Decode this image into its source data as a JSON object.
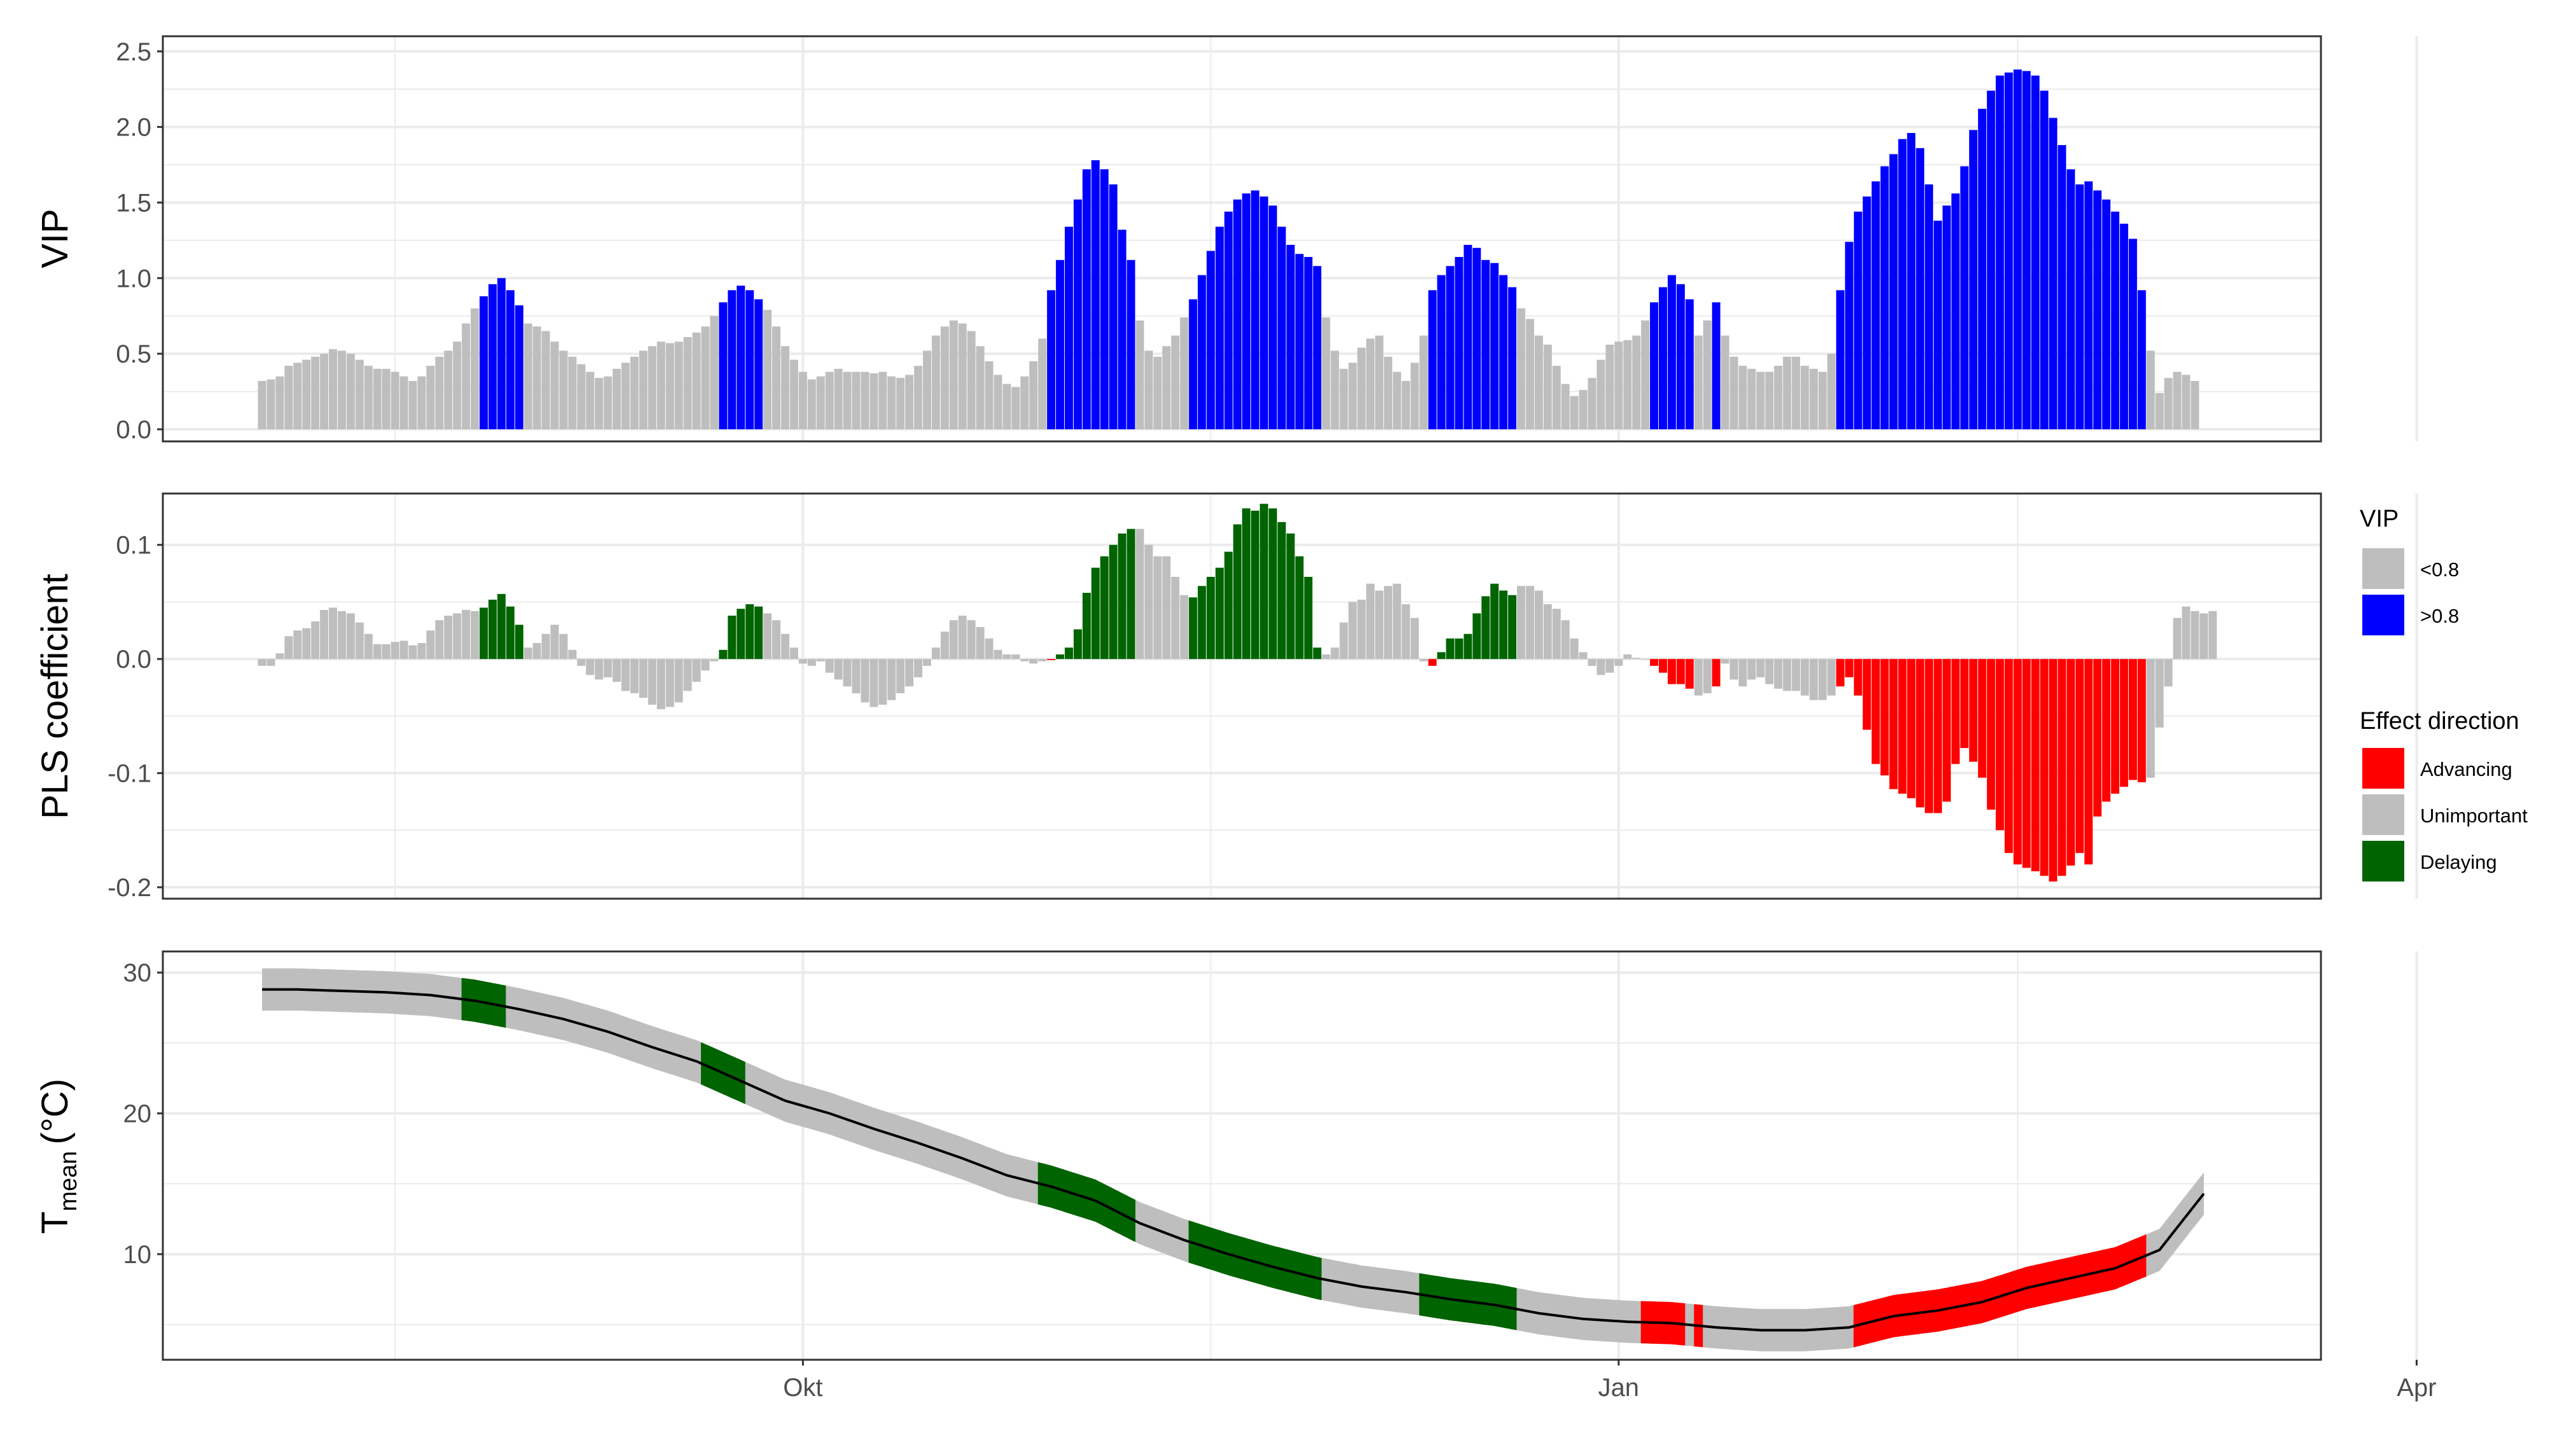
{
  "figure": {
    "x_tick_labels": [
      "Okt",
      "Jan",
      "Apr"
    ]
  },
  "colors": {
    "unimportant": "#bebebe",
    "important": "#0000ff",
    "advancing": "#ff0000",
    "delaying": "#006400",
    "line": "#000000"
  },
  "legend": {
    "vip": {
      "title": "VIP",
      "items": [
        "<0.8",
        ">0.8"
      ]
    },
    "effect": {
      "title": "Effect direction",
      "items": [
        "Advancing",
        "Unimportant",
        "Delaying"
      ]
    }
  },
  "chart_data": [
    {
      "type": "bar",
      "panel": "vip",
      "ylabel": "VIP",
      "ylim": [
        -0.08,
        2.6
      ],
      "yticks": [
        0.0,
        0.5,
        1.0,
        1.5,
        2.0,
        2.5
      ],
      "ytick_labels": [
        "0.0",
        "0.5",
        "1.0",
        "1.5",
        "2.0",
        "2.5"
      ],
      "x_day_start": 1,
      "x_day_end": 220,
      "x_axis_note": "days from 1 Aug; Okt = day 62, Jan = day 154, Apr = day 244",
      "threshold": 0.8,
      "values": [
        0.32,
        0.33,
        0.35,
        0.42,
        0.44,
        0.46,
        0.48,
        0.5,
        0.53,
        0.52,
        0.5,
        0.46,
        0.42,
        0.4,
        0.4,
        0.38,
        0.35,
        0.32,
        0.35,
        0.42,
        0.48,
        0.52,
        0.58,
        0.7,
        0.8,
        0.88,
        0.96,
        1.0,
        0.92,
        0.82,
        0.7,
        0.68,
        0.65,
        0.58,
        0.52,
        0.48,
        0.43,
        0.38,
        0.34,
        0.35,
        0.4,
        0.44,
        0.48,
        0.52,
        0.55,
        0.58,
        0.57,
        0.58,
        0.61,
        0.64,
        0.68,
        0.75,
        0.84,
        0.92,
        0.95,
        0.92,
        0.86,
        0.79,
        0.68,
        0.55,
        0.46,
        0.38,
        0.33,
        0.35,
        0.38,
        0.4,
        0.38,
        0.38,
        0.38,
        0.37,
        0.38,
        0.35,
        0.34,
        0.36,
        0.42,
        0.52,
        0.62,
        0.68,
        0.72,
        0.7,
        0.65,
        0.55,
        0.45,
        0.36,
        0.3,
        0.28,
        0.35,
        0.45,
        0.6,
        0.92,
        1.12,
        1.34,
        1.52,
        1.72,
        1.78,
        1.72,
        1.62,
        1.32,
        1.12,
        0.72,
        0.52,
        0.48,
        0.55,
        0.62,
        0.74,
        0.86,
        1.02,
        1.18,
        1.34,
        1.44,
        1.52,
        1.56,
        1.58,
        1.54,
        1.48,
        1.34,
        1.22,
        1.16,
        1.14,
        1.08,
        0.74,
        0.52,
        0.4,
        0.44,
        0.54,
        0.6,
        0.62,
        0.48,
        0.38,
        0.32,
        0.44,
        0.62,
        0.92,
        1.02,
        1.08,
        1.14,
        1.22,
        1.2,
        1.12,
        1.1,
        1.02,
        0.94,
        0.8,
        0.73,
        0.62,
        0.56,
        0.42,
        0.3,
        0.22,
        0.26,
        0.34,
        0.46,
        0.56,
        0.58,
        0.59,
        0.62,
        0.72,
        0.84,
        0.94,
        1.02,
        0.96,
        0.86,
        0.62,
        0.72,
        0.84,
        0.62,
        0.48,
        0.42,
        0.4,
        0.38,
        0.38,
        0.42,
        0.48,
        0.48,
        0.42,
        0.4,
        0.38,
        0.5,
        0.92,
        1.24,
        1.44,
        1.54,
        1.64,
        1.74,
        1.82,
        1.92,
        1.96,
        1.86,
        1.62,
        1.38,
        1.48,
        1.56,
        1.74,
        1.98,
        2.12,
        2.24,
        2.34,
        2.36,
        2.38,
        2.37,
        2.34,
        2.24,
        2.06,
        1.88,
        1.72,
        1.62,
        1.64,
        1.58,
        1.52,
        1.44,
        1.36,
        1.26,
        0.92,
        0.52,
        0.24,
        0.34,
        0.38,
        0.36,
        0.32
      ]
    },
    {
      "type": "bar",
      "panel": "pls",
      "ylabel": "PLS coefficient",
      "ylim": [
        -0.21,
        0.145
      ],
      "yticks": [
        0.1,
        0.0,
        -0.1,
        -0.2
      ],
      "ytick_labels": [
        "0.1",
        "0.0",
        "-0.1",
        "-0.2"
      ],
      "x_day_start": 1,
      "x_day_end": 220,
      "values": [
        -0.006,
        -0.006,
        0.005,
        0.02,
        0.025,
        0.027,
        0.033,
        0.043,
        0.045,
        0.042,
        0.04,
        0.032,
        0.022,
        0.013,
        0.013,
        0.015,
        0.016,
        0.012,
        0.014,
        0.025,
        0.034,
        0.038,
        0.04,
        0.043,
        0.042,
        0.045,
        0.052,
        0.057,
        0.046,
        0.03,
        0.01,
        0.014,
        0.022,
        0.03,
        0.022,
        0.008,
        -0.006,
        -0.014,
        -0.018,
        -0.016,
        -0.02,
        -0.028,
        -0.03,
        -0.034,
        -0.04,
        -0.044,
        -0.042,
        -0.038,
        -0.028,
        -0.02,
        -0.01,
        -0.002,
        0.008,
        0.038,
        0.044,
        0.048,
        0.046,
        0.04,
        0.034,
        0.022,
        0.01,
        -0.004,
        -0.006,
        -0.002,
        -0.012,
        -0.018,
        -0.024,
        -0.03,
        -0.038,
        -0.042,
        -0.04,
        -0.036,
        -0.03,
        -0.024,
        -0.016,
        -0.006,
        0.01,
        0.024,
        0.034,
        0.038,
        0.034,
        0.028,
        0.018,
        0.008,
        0.004,
        0.004,
        -0.002,
        -0.004,
        -0.002,
        -0.001,
        0.004,
        0.01,
        0.026,
        0.058,
        0.08,
        0.09,
        0.1,
        0.11,
        0.114,
        0.114,
        0.1,
        0.09,
        0.09,
        0.072,
        0.056,
        0.054,
        0.064,
        0.072,
        0.08,
        0.094,
        0.118,
        0.132,
        0.13,
        0.136,
        0.132,
        0.12,
        0.11,
        0.09,
        0.072,
        0.01,
        0.004,
        0.01,
        0.032,
        0.05,
        0.052,
        0.066,
        0.06,
        0.064,
        0.066,
        0.048,
        0.036,
        -0.002,
        -0.006,
        0.006,
        0.018,
        0.018,
        0.022,
        0.04,
        0.055,
        0.066,
        0.06,
        0.056,
        0.064,
        0.064,
        0.06,
        0.048,
        0.044,
        0.034,
        0.018,
        0.006,
        -0.006,
        -0.014,
        -0.012,
        -0.006,
        0.004,
        0.001,
        0.0,
        -0.006,
        -0.012,
        -0.022,
        -0.022,
        -0.026,
        -0.032,
        -0.03,
        -0.024,
        -0.004,
        -0.018,
        -0.024,
        -0.018,
        -0.016,
        -0.022,
        -0.026,
        -0.028,
        -0.028,
        -0.032,
        -0.036,
        -0.036,
        -0.032,
        -0.024,
        -0.016,
        -0.032,
        -0.062,
        -0.092,
        -0.102,
        -0.114,
        -0.118,
        -0.122,
        -0.13,
        -0.135,
        -0.135,
        -0.125,
        -0.092,
        -0.078,
        -0.09,
        -0.104,
        -0.132,
        -0.15,
        -0.17,
        -0.18,
        -0.183,
        -0.186,
        -0.19,
        -0.195,
        -0.19,
        -0.181,
        -0.17,
        -0.18,
        -0.138,
        -0.125,
        -0.118,
        -0.112,
        -0.106,
        -0.108,
        -0.104,
        -0.06,
        -0.024,
        0.036,
        0.046,
        0.042,
        0.04,
        0.042
      ]
    },
    {
      "type": "line",
      "panel": "temperature",
      "ylabel": "T",
      "ylabel_sub": "mean",
      "ylabel_unit": "(°C)",
      "ylim": [
        2.5,
        31.5
      ],
      "yticks": [
        30,
        20,
        10
      ],
      "ytick_labels": [
        "30",
        "20",
        "10"
      ],
      "x_day_start": 1,
      "x_day_end": 220,
      "x": [
        1,
        5,
        10,
        15,
        20,
        25,
        30,
        35,
        40,
        45,
        50,
        55,
        60,
        65,
        70,
        75,
        80,
        85,
        90,
        95,
        100,
        105,
        110,
        115,
        120,
        125,
        130,
        135,
        140,
        145,
        150,
        155,
        160,
        165,
        170,
        175,
        180,
        185,
        190,
        195,
        200,
        205,
        210,
        215,
        220
      ],
      "mean": [
        28.8,
        28.8,
        28.7,
        28.6,
        28.4,
        28.0,
        27.4,
        26.7,
        25.8,
        24.7,
        23.7,
        22.3,
        20.9,
        20.0,
        18.9,
        17.9,
        16.8,
        15.6,
        14.8,
        13.8,
        12.2,
        11.0,
        10.0,
        9.1,
        8.3,
        7.7,
        7.3,
        6.8,
        6.4,
        5.8,
        5.4,
        5.2,
        5.1,
        4.8,
        4.6,
        4.6,
        4.8,
        5.6,
        6.0,
        6.6,
        7.6,
        8.3,
        9.0,
        10.3,
        14.3
      ],
      "band_halfwidth": 1.5,
      "colored_segments": [
        {
          "from": 24,
          "to": 28,
          "effect": "Delaying"
        },
        {
          "from": 51,
          "to": 55,
          "effect": "Delaying"
        },
        {
          "from": 89,
          "to": 99,
          "effect": "Delaying"
        },
        {
          "from": 106,
          "to": 120,
          "effect": "Delaying"
        },
        {
          "from": 132,
          "to": 142,
          "effect": "Delaying"
        },
        {
          "from": 157,
          "to": 161,
          "effect": "Advancing"
        },
        {
          "from": 163,
          "to": 163,
          "effect": "Advancing"
        },
        {
          "from": 181,
          "to": 213,
          "effect": "Advancing"
        }
      ]
    }
  ]
}
